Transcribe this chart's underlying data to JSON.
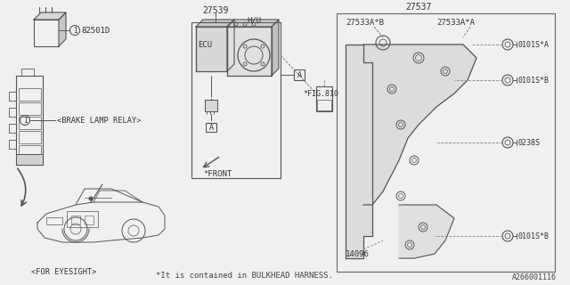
{
  "bg_color": "#f0f0f0",
  "line_color": "#555555",
  "text_color": "#333333",
  "footer_text": "*It is contained in BULKHEAD HARNESS.",
  "figure_id": "A266001116",
  "labels": {
    "relay_box_number": "82501D",
    "relay_label": "<BRAKE LAMP RELAY>",
    "eyesight_label": "<FOR EYESIGHT>",
    "part_27539": "27539",
    "part_27537": "27537",
    "part_27533AB": "27533A*B",
    "part_27533AA": "27533A*A",
    "part_14096": "14096",
    "part_0101SA": "0101S*A",
    "part_0101SB_1": "0101S*B",
    "part_0101SB_2": "0101S*B",
    "part_0238S": "0238S",
    "label_HU": "H/U",
    "label_ECU": "ECU",
    "label_FIG": "*FIG.810",
    "label_FRONT": "*FRONT",
    "label_A": "A"
  }
}
